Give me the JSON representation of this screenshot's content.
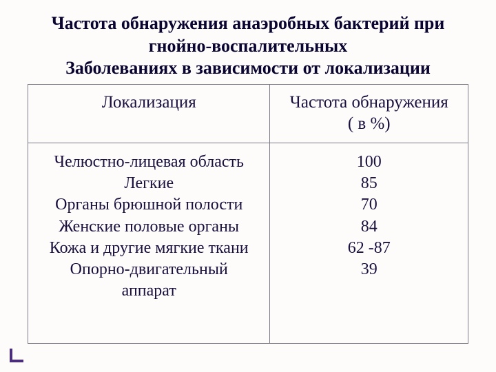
{
  "title": {
    "line1": "Частота обнаружения анаэробных бактерий при",
    "line2": "гнойно-воспалительных",
    "line3": "Заболеваниях в зависимости от локализации"
  },
  "table": {
    "header": {
      "col1": "Локализация",
      "col2_line1": "Частота обнаружения",
      "col2_line2": "( в %)"
    },
    "body": {
      "col1": {
        "l1": "Челюстно-лицевая область",
        "l2": "Легкие",
        "l3": "Органы брюшной полости",
        "l4": "Женские половые органы",
        "l5": "Кожа и другие мягкие ткани",
        "l6": "Опорно-двигательный",
        "l7": "аппарат"
      },
      "col2": {
        "v1": "100",
        "v2": "85",
        "v3": "70",
        "v4": "84",
        "v5": "62 -87",
        "v6": "39"
      }
    }
  }
}
